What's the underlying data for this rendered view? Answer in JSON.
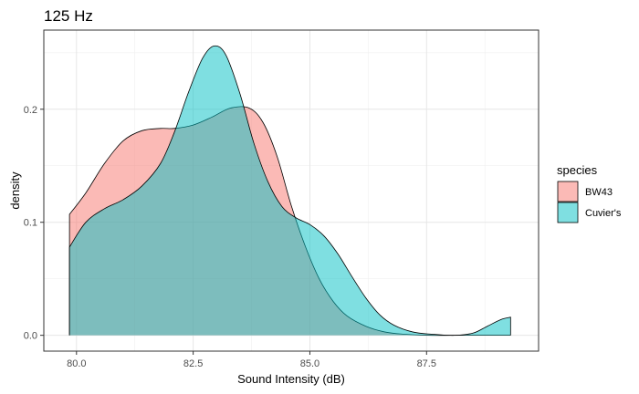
{
  "chart_data": {
    "type": "area",
    "title": "125 Hz",
    "xlabel": "Sound Intensity (dB)",
    "ylabel": "density",
    "xlim": [
      79.3,
      89.9
    ],
    "ylim": [
      -0.014,
      0.27
    ],
    "x_ticks": [
      80.0,
      82.5,
      85.0,
      87.5
    ],
    "x_tick_labels": [
      "80.0",
      "82.5",
      "85.0",
      "87.5"
    ],
    "y_ticks": [
      0.0,
      0.1,
      0.2
    ],
    "y_tick_labels": [
      "0.0",
      "0.1",
      "0.2"
    ],
    "grid": true,
    "legend": {
      "title": "species",
      "position": "right"
    },
    "series": [
      {
        "name": "BW43",
        "color": "#F8766D",
        "points": [
          [
            79.85,
            0.107
          ],
          [
            80.2,
            0.126
          ],
          [
            80.6,
            0.152
          ],
          [
            81.0,
            0.172
          ],
          [
            81.4,
            0.181
          ],
          [
            81.8,
            0.183
          ],
          [
            82.1,
            0.183
          ],
          [
            82.5,
            0.186
          ],
          [
            82.9,
            0.193
          ],
          [
            83.3,
            0.201
          ],
          [
            83.7,
            0.201
          ],
          [
            84.0,
            0.188
          ],
          [
            84.3,
            0.158
          ],
          [
            84.6,
            0.115
          ],
          [
            84.9,
            0.079
          ],
          [
            85.2,
            0.05
          ],
          [
            85.5,
            0.03
          ],
          [
            85.8,
            0.017
          ],
          [
            86.2,
            0.008
          ],
          [
            86.6,
            0.003
          ],
          [
            87.0,
            0.001
          ],
          [
            87.5,
            0.0
          ],
          [
            88.2,
            0.0
          ],
          [
            89.3,
            0.0
          ]
        ]
      },
      {
        "name": "Cuvier's",
        "color": "#00BFC4",
        "points": [
          [
            79.85,
            0.078
          ],
          [
            80.2,
            0.1
          ],
          [
            80.6,
            0.112
          ],
          [
            81.0,
            0.12
          ],
          [
            81.4,
            0.132
          ],
          [
            81.8,
            0.152
          ],
          [
            82.1,
            0.18
          ],
          [
            82.4,
            0.215
          ],
          [
            82.7,
            0.245
          ],
          [
            82.95,
            0.256
          ],
          [
            83.2,
            0.248
          ],
          [
            83.5,
            0.214
          ],
          [
            83.8,
            0.17
          ],
          [
            84.1,
            0.136
          ],
          [
            84.4,
            0.114
          ],
          [
            84.7,
            0.104
          ],
          [
            85.0,
            0.098
          ],
          [
            85.3,
            0.088
          ],
          [
            85.6,
            0.072
          ],
          [
            85.9,
            0.052
          ],
          [
            86.2,
            0.033
          ],
          [
            86.5,
            0.018
          ],
          [
            86.8,
            0.009
          ],
          [
            87.2,
            0.003
          ],
          [
            87.6,
            0.001
          ],
          [
            88.1,
            0.0
          ],
          [
            88.5,
            0.002
          ],
          [
            88.8,
            0.008
          ],
          [
            89.1,
            0.014
          ],
          [
            89.3,
            0.016
          ]
        ]
      }
    ]
  }
}
